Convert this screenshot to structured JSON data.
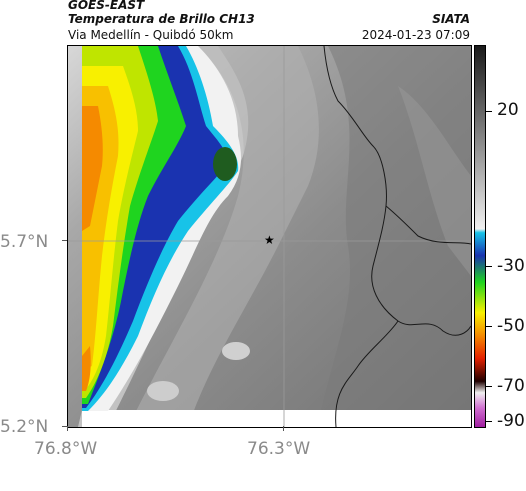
{
  "header": {
    "satellite": "GOES-EAST",
    "product": "Temperatura de Brillo CH13",
    "region": "Via Medellín - Quibdó 50km",
    "org": "SIATA",
    "timestamp": "2024-01-23 07:09"
  },
  "axes": {
    "lat_ticks": [
      "5.7°N",
      "5.2°N"
    ],
    "lon_ticks": [
      "76.8°W",
      "76.3°W"
    ]
  },
  "colorbar": {
    "ticks": [
      "20",
      "-30",
      "-50",
      "-70",
      "-90"
    ],
    "colors": {
      "gray_top": "#1a1a1a",
      "gray_bottom": "#f0f0f0",
      "cyan": "#17c3e8",
      "blue": "#1a33b0",
      "green": "#1fd41f",
      "yellow": "#f8f000",
      "orange": "#f58a00",
      "red": "#e32000",
      "magenta": "#c040c0"
    }
  },
  "map": {
    "marker": "star-icon",
    "features": [
      "cloud-cold-tops",
      "department-borders",
      "gridlines"
    ]
  }
}
